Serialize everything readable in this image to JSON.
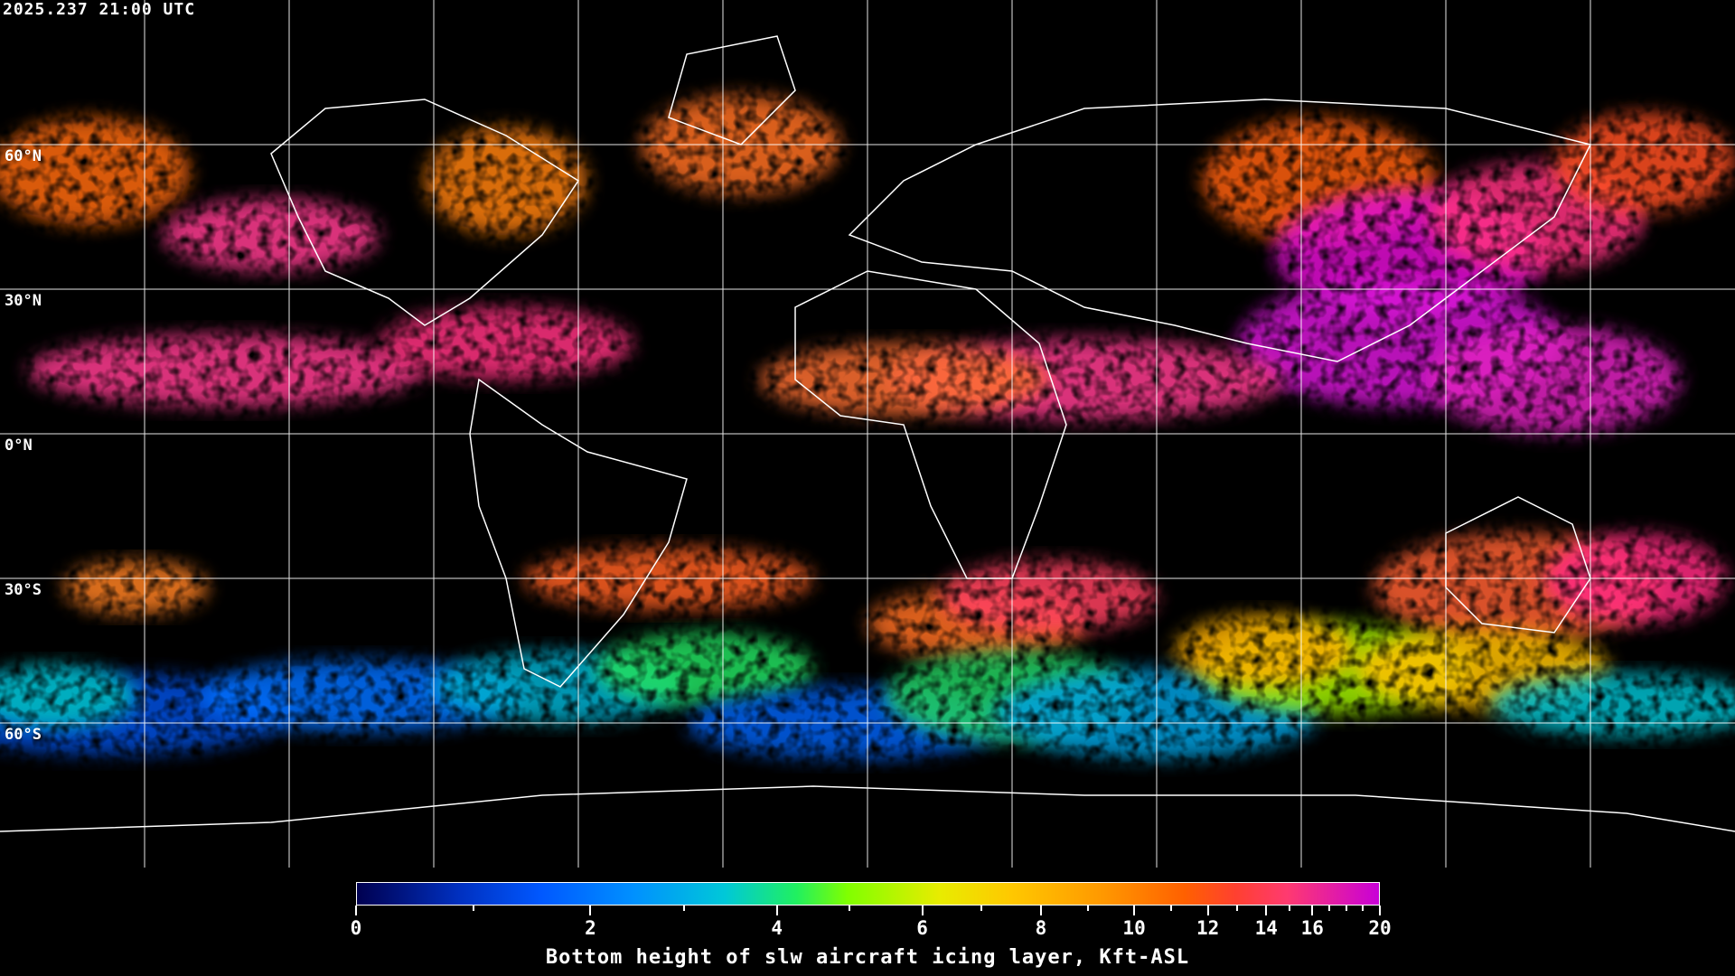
{
  "timestamp": "2025.237 21:00 UTC",
  "map": {
    "projection": "equirectangular",
    "background_color": "#000000",
    "grid_color": "#ffffff",
    "coastline_color": "#ffffff",
    "lat_labels": [
      "60°N",
      "30°N",
      "0°N",
      "30°S",
      "60°S"
    ],
    "grid_longitude_spacing_deg": 30,
    "grid_latitude_spacing_deg": 30
  },
  "colorbar": {
    "title": "Bottom height of slw aircraft icing layer, Kft-ASL",
    "range": [
      0,
      20
    ],
    "tick_labels": [
      "0",
      "2",
      "4",
      "6",
      "8",
      "10",
      "12",
      "14",
      "16",
      "20"
    ],
    "minor_ticks": [
      1,
      3,
      5,
      7,
      9,
      11,
      13,
      15,
      17,
      18,
      19
    ],
    "colors": [
      "#000050",
      "#0058ff",
      "#0090ff",
      "#00c8d8",
      "#20f060",
      "#80ff00",
      "#e8ec00",
      "#ffc800",
      "#ff9800",
      "#ff6000",
      "#ff4030",
      "#c800d8"
    ]
  }
}
